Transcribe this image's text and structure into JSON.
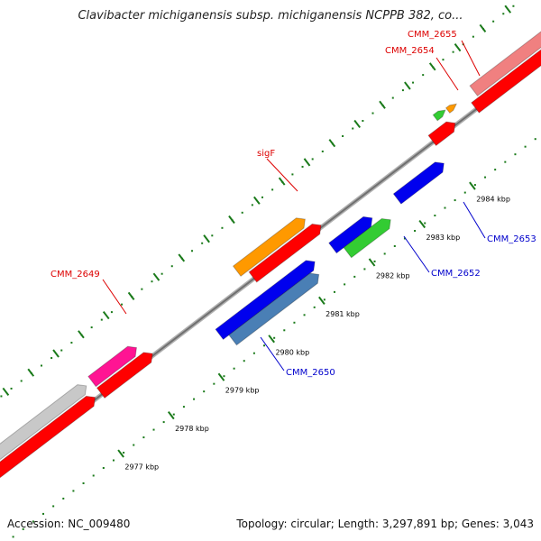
{
  "title": "Clavibacter michiganensis subsp. michiganensis NCPPB 382, co...",
  "footer": {
    "accession": "Accession: NC_009480",
    "topology": "Topology: circular; Length: 3,297,891 bp; Genes: 3,043"
  },
  "colors": {
    "red": "#ff0000",
    "blue": "#0000ee",
    "steel_blue": "#4a7fb5",
    "green": "#33cc33",
    "orange": "#ff9900",
    "pink": "#ff1493",
    "light_pink": "#f08080",
    "gray": "#c8c8c8",
    "backbone": "#808080",
    "tick": "#1a7a1a",
    "label_red": "#dd0000",
    "label_blue": "#0000cc"
  },
  "ticks": [
    {
      "label": "2977 kbp"
    },
    {
      "label": "2978 kbp"
    },
    {
      "label": "2979 kbp"
    },
    {
      "label": "2980 kbp"
    },
    {
      "label": "2981 kbp"
    },
    {
      "label": "2982 kbp"
    },
    {
      "label": "2983 kbp"
    },
    {
      "label": "2984 kbp"
    }
  ],
  "gene_labels": [
    {
      "text": "CMM_2655",
      "color": "label_red"
    },
    {
      "text": "CMM_2654",
      "color": "label_red"
    },
    {
      "text": "sigF",
      "color": "label_red"
    },
    {
      "text": "CMM_2649",
      "color": "label_red"
    },
    {
      "text": "CMM_2653",
      "color": "label_blue"
    },
    {
      "text": "CMM_2652",
      "color": "label_blue"
    },
    {
      "text": "CMM_2650",
      "color": "label_blue"
    }
  ]
}
